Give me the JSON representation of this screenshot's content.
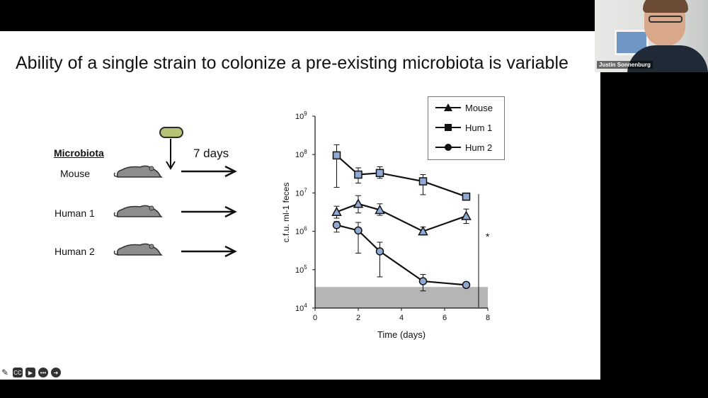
{
  "slide": {
    "title": "Ability of a single strain to colonize a pre-existing microbiota is variable",
    "microbiota_label": "Microbiota",
    "days_label": "7 days",
    "rows": [
      {
        "label": "Mouse"
      },
      {
        "label": "Human 1"
      },
      {
        "label": "Human 2"
      }
    ]
  },
  "chart_data": {
    "type": "line",
    "xlabel": "Time (days)",
    "ylabel": "c.f.u. ml-1 feces",
    "xlim": [
      0,
      8
    ],
    "ylim_log10": [
      4,
      9
    ],
    "y_scale": "log",
    "x_ticks": [
      "0",
      "2",
      "4",
      "6",
      "8"
    ],
    "y_ticks": [
      {
        "base": "10",
        "exp": "4",
        "v": 4
      },
      {
        "base": "10",
        "exp": "5",
        "v": 5
      },
      {
        "base": "10",
        "exp": "6",
        "v": 6
      },
      {
        "base": "10",
        "exp": "7",
        "v": 7
      },
      {
        "base": "10",
        "exp": "8",
        "v": 8
      },
      {
        "base": "10",
        "exp": "9",
        "v": 9
      }
    ],
    "detection_limit_log10": 4.55,
    "legend_position": "top-right",
    "significance_marker": "*",
    "series": [
      {
        "name": "Mouse",
        "marker": "triangle",
        "x": [
          1,
          2,
          3,
          5,
          7
        ],
        "y": [
          3200000.0,
          5200000.0,
          3600000.0,
          1000000.0,
          2500000.0
        ],
        "err_hi": [
          4500000.0,
          8500000.0,
          5200000.0,
          1300000.0,
          3800000.0
        ],
        "err_lo": [
          2200000.0,
          3000000.0,
          2600000.0,
          800000.0,
          1600000.0
        ]
      },
      {
        "name": "Hum 1",
        "marker": "square",
        "x": [
          1,
          2,
          3,
          5,
          7
        ],
        "y": [
          95000000.0,
          30000000.0,
          33000000.0,
          20000000.0,
          8000000.0
        ],
        "err_hi": [
          180000000.0,
          45000000.0,
          48000000.0,
          30000000.0,
          8000000.0
        ],
        "err_lo": [
          14000000.0,
          18000000.0,
          24000000.0,
          9000000.0,
          8000000.0
        ]
      },
      {
        "name": "Hum 2",
        "marker": "circle",
        "x": [
          1,
          2,
          3,
          5,
          7
        ],
        "y": [
          1450000.0,
          1050000.0,
          300000.0,
          50000.0,
          40000.0
        ],
        "err_hi": [
          1800000.0,
          1700000.0,
          520000.0,
          75000.0,
          40000.0
        ],
        "err_lo": [
          950000.0,
          270000.0,
          65000.0,
          28000.0,
          40000.0
        ]
      }
    ]
  },
  "presenter": {
    "name": "Justin Sonnenburg"
  },
  "toolbar": {
    "icons": [
      "pencil-icon",
      "captions-icon",
      "video-off-icon",
      "more-icon",
      "next-icon"
    ]
  },
  "colors": {
    "marker_fill": "#8fa9d3",
    "detection_band": "#b5b5b5"
  }
}
